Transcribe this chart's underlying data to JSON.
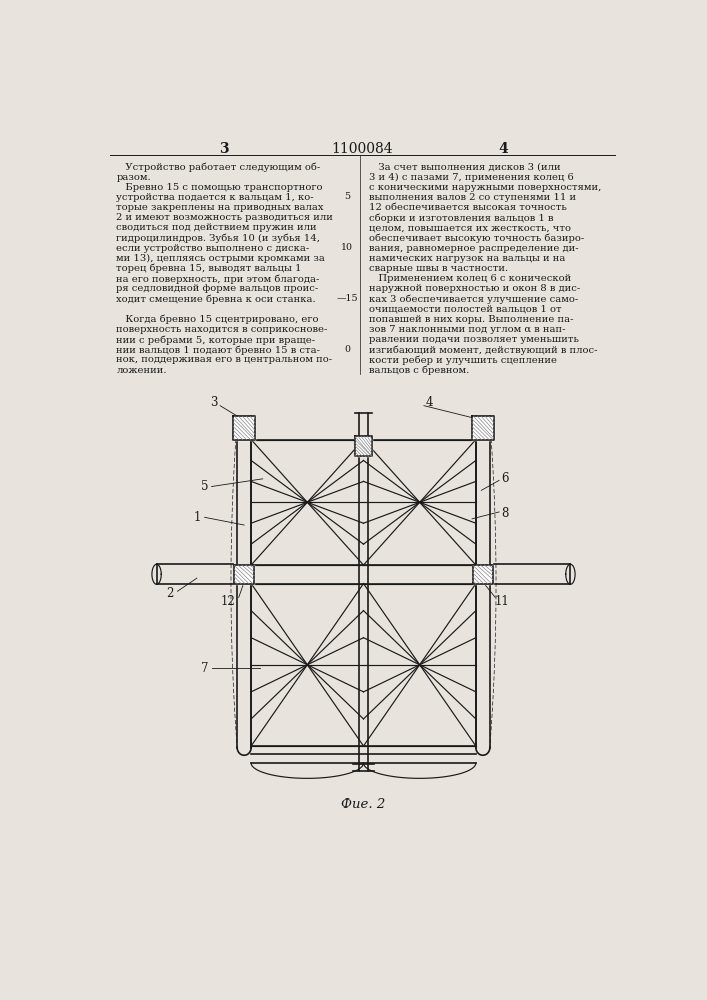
{
  "page_number_left": "3",
  "page_number_right": "4",
  "patent_number": "1100084",
  "left_column_text": [
    "   Устройство работает следующим об-",
    "разом.",
    "   Бревно 15 с помощью транспортного",
    "устройства подается к вальцам 1, ко-",
    "торые закреплены на приводных валах",
    "2 и имеют возможность разводиться или",
    "сводиться под действием пружин или",
    "гидроцилиндров. Зубья 10 (и зубья 14,",
    "если устройство выполнено с диска-",
    "ми 13), цепляясь острыми кромками за",
    "торец бревна 15, выводят вальцы 1",
    "на его поверхность, при этом благода-",
    "ря седловидной форме вальцов проис-",
    "ходит смещение бревна к оси станка.",
    "",
    "   Когда бревно 15 сцентрировано, его",
    "поверхность находится в соприкоснове-",
    "нии с ребрами 5, которые при враще-",
    "нии вальцов 1 подают бревно 15 в ста-",
    "нок, поддерживая его в центральном по-",
    "ложении."
  ],
  "right_column_text": [
    "   За счет выполнения дисков 3 (или",
    "3 и 4) с пазами 7, применения колец 6",
    "с коническими наружными поверхностями,",
    "выполнения валов 2 со ступенями 11 и",
    "12 обеспечивается высокая точность",
    "сборки и изготовления вальцов 1 в",
    "целом, повышается их жесткость, что",
    "обеспечивает высокую точность базиро-",
    "вания, равномерное распределение ди-",
    "намических нагрузок на вальцы и на",
    "сварные швы в частности.",
    "   Применением колец 6 с конической",
    "наружной поверхностью и окон 8 в дис-",
    "ках 3 обеспечивается улучшение само-",
    "очищаемости полостей вальцов 1 от",
    "попавшей в них коры. Выполнение па-",
    "зов 7 наклонными под углом α в нап-",
    "равлении подачи позволяет уменьшить",
    "изгибающий момент, действующий в плос-",
    "кости ребер и улучшить сцепление",
    "вальцов с бревном."
  ],
  "fig_caption": "Фие. 2",
  "bg_color": "#e8e4dd",
  "text_color": "#1a1a1a",
  "line_color": "#1a1a1a"
}
